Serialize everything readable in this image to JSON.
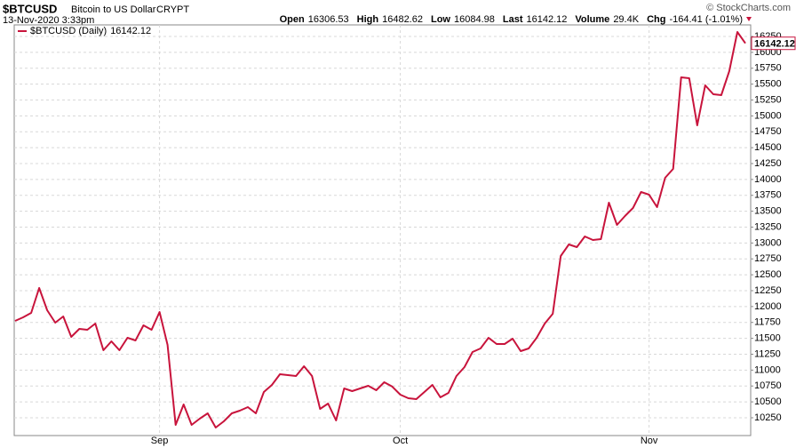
{
  "chart_data": {
    "type": "line",
    "title": "$BTCUSD",
    "subtitle": "Bitcoin to US Dollar",
    "exchange": "CRYPT",
    "timestamp": "13-Nov-2020 3:33pm",
    "credit": "© StockCharts.com",
    "quote": [
      {
        "label": "Open",
        "value": "16306.53"
      },
      {
        "label": "High",
        "value": "16482.62"
      },
      {
        "label": "Low",
        "value": "16084.98"
      },
      {
        "label": "Last",
        "value": "16142.12"
      },
      {
        "label": "Volume",
        "value": "29.4K"
      },
      {
        "label": "Chg",
        "value": "-164.41 (-1.01%)"
      }
    ],
    "categories": [
      null,
      null,
      null,
      null,
      null,
      null,
      null,
      null,
      null,
      null,
      null,
      null,
      null,
      null,
      null,
      null,
      null,
      null,
      "Sep",
      null,
      null,
      null,
      null,
      null,
      null,
      null,
      null,
      null,
      null,
      null,
      null,
      null,
      null,
      null,
      null,
      null,
      null,
      null,
      null,
      null,
      null,
      null,
      null,
      null,
      null,
      null,
      null,
      null,
      "Oct",
      null,
      null,
      null,
      null,
      null,
      null,
      null,
      null,
      null,
      null,
      null,
      null,
      null,
      null,
      null,
      null,
      null,
      null,
      null,
      null,
      null,
      null,
      null,
      null,
      null,
      null,
      null,
      null,
      null,
      null,
      "Nov",
      null,
      null,
      null,
      null,
      null,
      null,
      null,
      null,
      null,
      null,
      null,
      null
    ],
    "series": [
      {
        "name": "$BTCUSD (Daily)",
        "color": "#c8143c",
        "values": [
          11774,
          11830,
          11900,
          12292,
          11942,
          11747,
          11844,
          11523,
          11649,
          11635,
          11733,
          11313,
          11453,
          11313,
          11509,
          11467,
          11705,
          11635,
          11914,
          11397,
          10138,
          10460,
          10138,
          10236,
          10320,
          10096,
          10194,
          10320,
          10362,
          10418,
          10320,
          10656,
          10767,
          10935,
          10921,
          10907,
          11061,
          10907,
          10390,
          10474,
          10208,
          10712,
          10670,
          10712,
          10753,
          10684,
          10809,
          10740,
          10614,
          10558,
          10544,
          10656,
          10767,
          10572,
          10642,
          10907,
          11047,
          11285,
          11341,
          11509,
          11411,
          11411,
          11495,
          11299,
          11341,
          11509,
          11733,
          11886,
          12795,
          12977,
          12935,
          13103,
          13047,
          13061,
          13635,
          13285,
          13425,
          13551,
          13802,
          13760,
          13565,
          14026,
          14166,
          15607,
          15593,
          14851,
          15481,
          15341,
          15327,
          15705,
          16320,
          16142.12
        ]
      }
    ],
    "ylim": [
      9970,
      16432
    ],
    "yticks": [
      10250,
      10500,
      10750,
      11000,
      11250,
      11500,
      11750,
      12000,
      12250,
      12500,
      12750,
      13000,
      13250,
      13500,
      13750,
      14000,
      14250,
      14500,
      14750,
      15000,
      15250,
      15500,
      15750,
      16000,
      16250
    ],
    "grid": true
  }
}
